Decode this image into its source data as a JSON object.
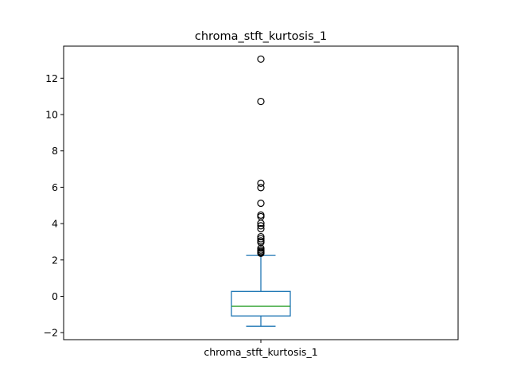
{
  "chart_data": {
    "type": "box",
    "title": "chroma_stft_kurtosis_1",
    "categories": [
      "chroma_stft_kurtosis_1"
    ],
    "xlabel": "",
    "ylabel": "",
    "ylim": [
      -2.4,
      13.7
    ],
    "yticks": [
      -2,
      0,
      2,
      4,
      6,
      8,
      10,
      12
    ],
    "ytick_labels": [
      "−2",
      "0",
      "2",
      "4",
      "6",
      "8",
      "10",
      "12"
    ],
    "grid": false,
    "box": {
      "whisker_low": -1.65,
      "q1": -1.08,
      "median": -0.55,
      "q3": 0.27,
      "whisker_high": 2.25,
      "outliers": [
        13.05,
        10.72,
        6.22,
        5.98,
        5.12,
        4.47,
        4.38,
        4.02,
        3.88,
        3.72,
        3.28,
        3.17,
        3.05,
        2.97,
        2.65,
        2.55,
        2.47,
        2.42,
        2.37
      ]
    },
    "colors": {
      "box": "#1f77b4",
      "median": "#2ca02c",
      "outlier_edge": "#000000",
      "axes": "#000000"
    }
  }
}
